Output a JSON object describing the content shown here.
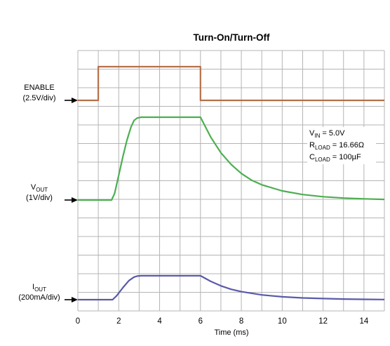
{
  "chart_data": {
    "type": "line",
    "title": "Turn-On/Turn-Off",
    "xlabel": "Time (ms)",
    "ylabel": "",
    "xlim": [
      0,
      15
    ],
    "xticks": [
      0,
      2,
      4,
      6,
      8,
      10,
      12,
      14
    ],
    "grid": true,
    "grid_divisions": {
      "x": 15,
      "y": 14
    },
    "channels": [
      {
        "id": "enable",
        "label_main": "ENABLE",
        "label_sub": "",
        "label_scale": "(2.5V/div)",
        "color": "#b5704a"
      },
      {
        "id": "vout",
        "label_main": "V",
        "label_sub": "OUT",
        "label_scale": "(1V/div)",
        "color": "#4caf50"
      },
      {
        "id": "iout",
        "label_main": "I",
        "label_sub": "OUT",
        "label_scale": "(200mA/div)",
        "color": "#5a5aaa"
      }
    ],
    "conditions": [
      {
        "main": "V",
        "sub": "IN",
        "rest": " = 5.0V"
      },
      {
        "main": "R",
        "sub": "LOAD",
        "rest": " = 16.66Ω"
      },
      {
        "main": "C",
        "sub": "LOAD",
        "rest": " = 100µF"
      }
    ],
    "series": [
      {
        "name": "ENABLE",
        "unit_per_div": "2.5V/div",
        "x": [
          0,
          1,
          1,
          6,
          6,
          15
        ],
        "y": [
          0,
          0,
          2,
          2,
          0,
          0
        ]
      },
      {
        "name": "VOUT",
        "unit_per_div": "1V/div",
        "x": [
          0,
          1.65,
          1.8,
          2.0,
          2.2,
          2.4,
          2.6,
          2.75,
          2.9,
          3.1,
          6.0,
          6.5,
          7.0,
          7.5,
          8.0,
          8.5,
          9.0,
          10.0,
          11.0,
          12.0,
          13.0,
          14.0,
          15.0
        ],
        "y": [
          0,
          0,
          0.4,
          1.5,
          2.6,
          3.6,
          4.4,
          4.8,
          4.95,
          5.0,
          5.0,
          3.8,
          2.85,
          2.15,
          1.6,
          1.2,
          0.92,
          0.55,
          0.33,
          0.2,
          0.12,
          0.07,
          0.04
        ]
      },
      {
        "name": "IOUT",
        "unit_per_div": "200mA/div",
        "x": [
          0,
          1.7,
          1.9,
          2.2,
          2.5,
          2.75,
          2.9,
          3.1,
          6.0,
          6.5,
          7.0,
          7.5,
          8.0,
          9.0,
          10.0,
          11.0,
          12.0,
          13.0,
          14.0,
          15.0
        ],
        "y": [
          0,
          0,
          0.25,
          0.75,
          1.2,
          1.42,
          1.48,
          1.5,
          1.5,
          1.15,
          0.87,
          0.65,
          0.5,
          0.3,
          0.18,
          0.11,
          0.07,
          0.04,
          0.02,
          0.01
        ]
      }
    ]
  }
}
